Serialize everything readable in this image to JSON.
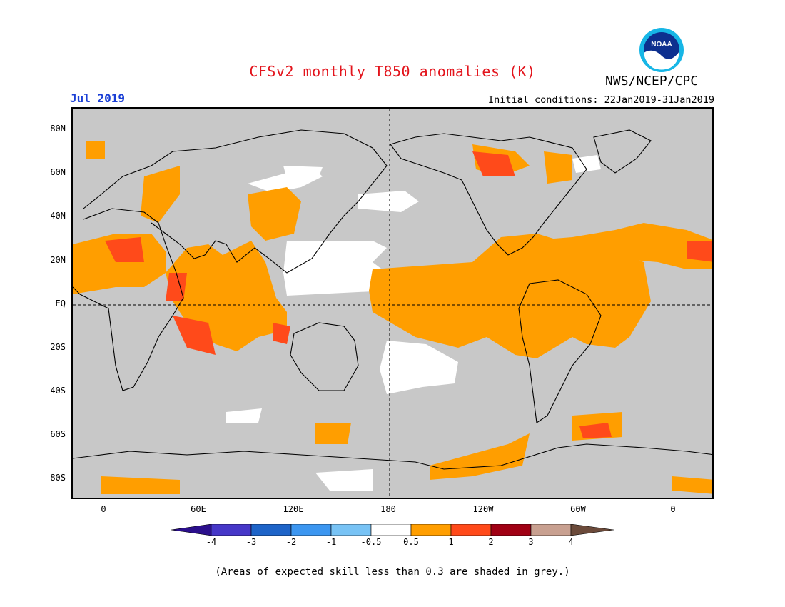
{
  "title": "CFSv2 monthly T850 anomalies (K)",
  "month_label": "Jul 2019",
  "initial_conditions": "Initial conditions: 22Jan2019-31Jan2019",
  "agency": "NWS/NCEP/CPC",
  "logo_text": "NOAA",
  "colors": {
    "title": "#e3141c",
    "month": "#1a3fd6",
    "skill_grey": "#c8c8c8",
    "positive_05_1": "#ff9e00",
    "positive_1_2": "#ff4a1a",
    "positive_2_3": "#c8001e",
    "coast": "#000000"
  },
  "y_axis": {
    "labels": [
      "80N",
      "60N",
      "40N",
      "20N",
      "EQ",
      "20S",
      "40S",
      "60S",
      "80S"
    ]
  },
  "x_axis": {
    "labels": [
      "0",
      "60E",
      "120E",
      "180",
      "120W",
      "60W",
      "0"
    ]
  },
  "colorbar": {
    "labels": [
      "-4",
      "-3",
      "-2",
      "-1",
      "-0.5",
      "0.5",
      "1",
      "2",
      "3",
      "4"
    ],
    "colors": [
      "#2b0f8c",
      "#4637c8",
      "#1e64c8",
      "#3c96f0",
      "#78c3f5",
      "#ffffff",
      "#ff9e00",
      "#ff4a1a",
      "#a00014",
      "#c8a090",
      "#6b4a3a"
    ]
  },
  "note": "(Areas of expected skill less than 0.3 are shaded in grey.)"
}
